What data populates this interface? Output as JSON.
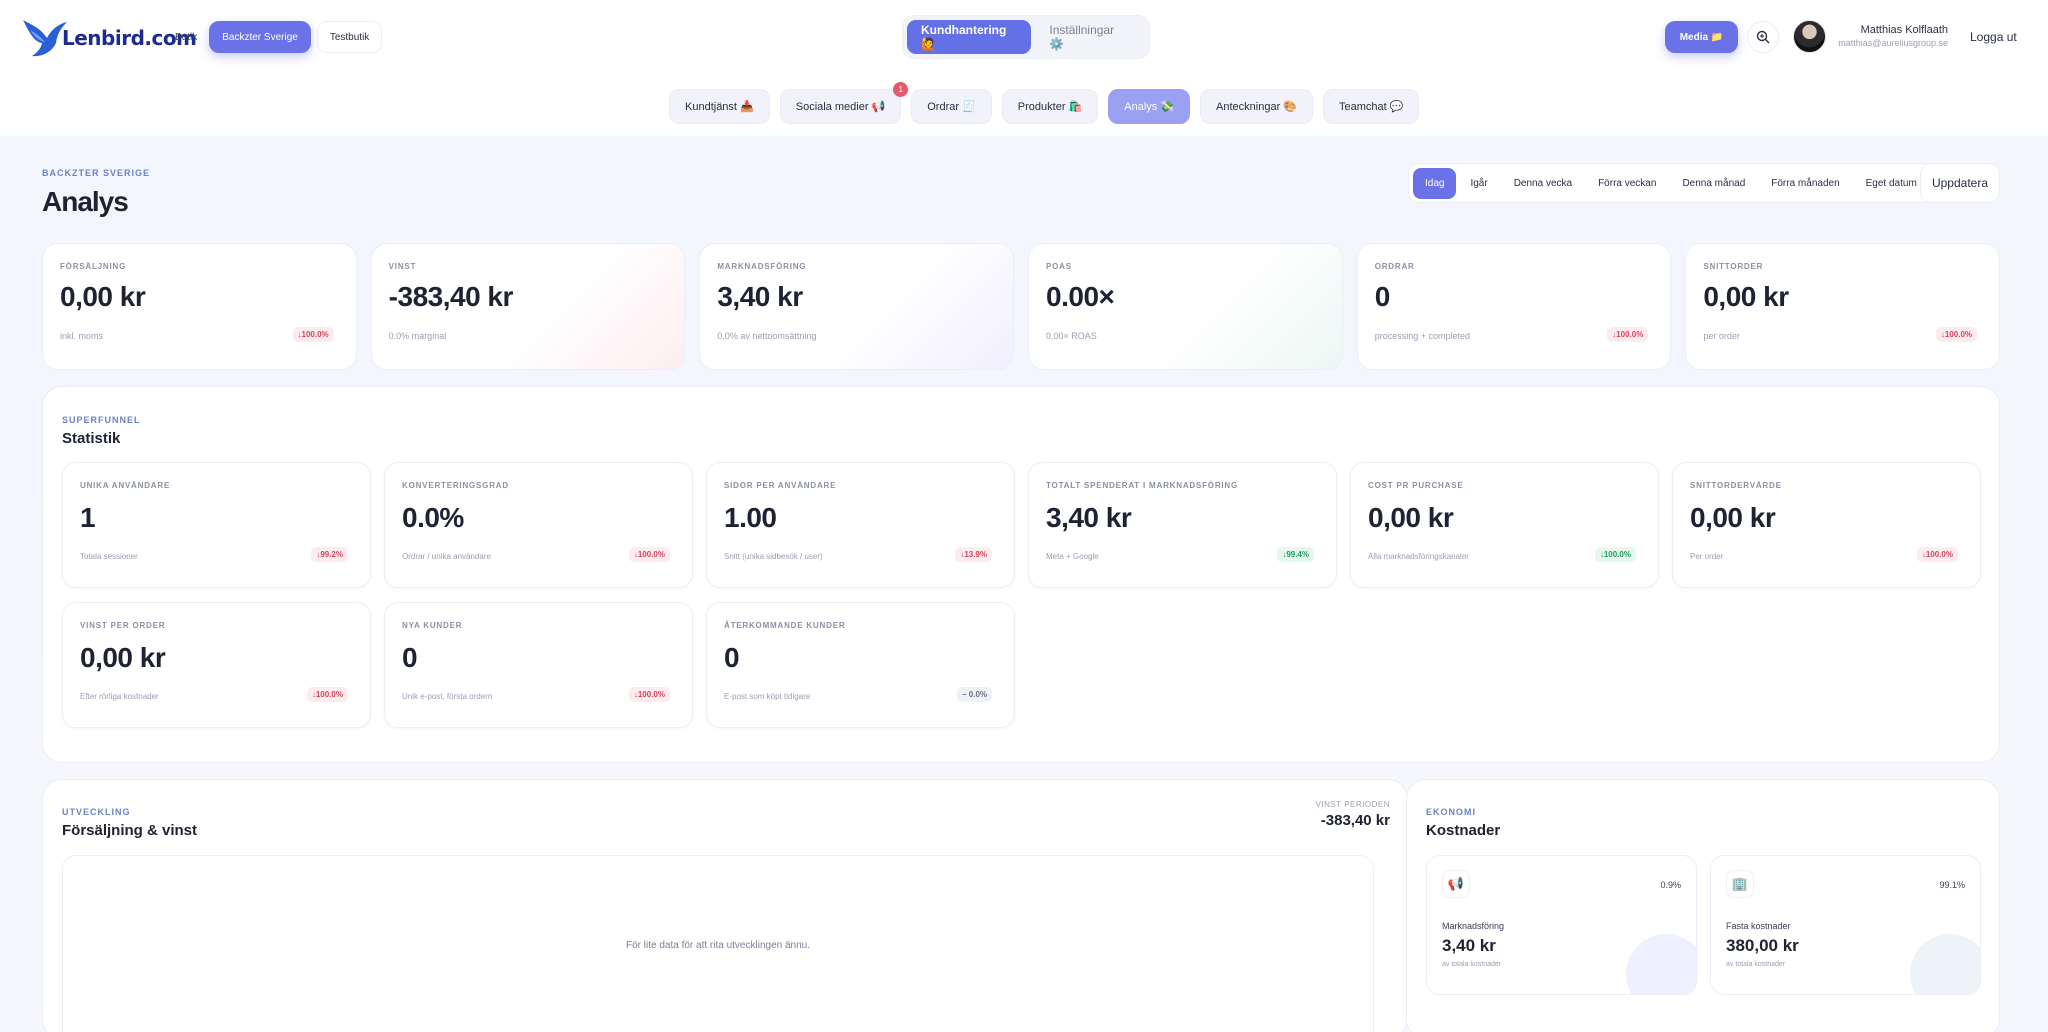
{
  "header": {
    "logo_text": "Lenbird.com",
    "store_label": "Butik",
    "stores": [
      "Backzter Sverige",
      "Testbutik"
    ],
    "main_toggle": [
      "Kundhantering 🙋",
      "Inställningar ⚙️"
    ],
    "media_label": "Media 📁",
    "user_name": "Matthias Kolflaath",
    "user_email": "matthias@aureliusgroup.se",
    "logout_label": "Logga ut"
  },
  "navtabs": [
    {
      "label": "Kundtjänst 📥"
    },
    {
      "label": "Sociala medier 📢",
      "badge": "1"
    },
    {
      "label": "Ordrar 🧾"
    },
    {
      "label": "Produkter 🛍️"
    },
    {
      "label": "Analys 💸"
    },
    {
      "label": "Anteckningar 🎨"
    },
    {
      "label": "Teamchat 💬"
    }
  ],
  "page": {
    "eyebrow": "BACKZTER SVERIGE",
    "title": "Analys",
    "ranges": [
      "Idag",
      "Igår",
      "Denna vecka",
      "Förra veckan",
      "Denna månad",
      "Förra månaden",
      "Eget datum"
    ],
    "refresh_label": "Uppdatera"
  },
  "kpis": [
    {
      "label": "FÖRSÄLJNING",
      "value": "0,00 kr",
      "sub": "inkl. moms",
      "delta": "↓100.0%"
    },
    {
      "label": "VINST",
      "value": "-383,40 kr",
      "sub": "0.0% marginal",
      "delta": ""
    },
    {
      "label": "MARKNADSFÖRING",
      "value": "3,40 kr",
      "sub": "0.0% av nettoomsättning",
      "delta": ""
    },
    {
      "label": "POAS",
      "value": "0.00×",
      "sub": "0.00× ROAS",
      "delta": ""
    },
    {
      "label": "ORDRAR",
      "value": "0",
      "sub": "processing + completed",
      "delta": "↓100.0%"
    },
    {
      "label": "SNITTORDER",
      "value": "0,00 kr",
      "sub": "per order",
      "delta": "↓100.0%"
    }
  ],
  "stats": {
    "eyebrow": "SUPERFUNNEL",
    "title": "Statistik",
    "items": [
      {
        "label": "UNIKA ANVÄNDARE",
        "value": "1",
        "sub": "Totala sessioner",
        "delta": "↓99.2%",
        "tone": "neg"
      },
      {
        "label": "KONVERTERINGSGRAD",
        "value": "0.0%",
        "sub": "Ordrar / unika användare",
        "delta": "↓100.0%",
        "tone": "neg"
      },
      {
        "label": "SIDOR PER ANVÄNDARE",
        "value": "1.00",
        "sub": "Snitt (unika sidbesök / user)",
        "delta": "↓13.9%",
        "tone": "neg"
      },
      {
        "label": "TOTALT SPENDERAT I MARKNADSFÖRING",
        "value": "3,40 kr",
        "sub": "Meta + Google",
        "delta": "↓99.4%",
        "tone": "pos"
      },
      {
        "label": "COST PR PURCHASE",
        "value": "0,00 kr",
        "sub": "Alla marknadsföringskanaler",
        "delta": "↓100.0%",
        "tone": "pos"
      },
      {
        "label": "SNITTORDERVÄRDE",
        "value": "0,00 kr",
        "sub": "Per order",
        "delta": "↓100.0%",
        "tone": "neg"
      },
      {
        "label": "VINST PER ORDER",
        "value": "0,00 kr",
        "sub": "Efter rörliga kostnader",
        "delta": "↓100.0%",
        "tone": "neg"
      },
      {
        "label": "NYA KUNDER",
        "value": "0",
        "sub": "Unik e-post, första ordern",
        "delta": "↓100.0%",
        "tone": "neg"
      },
      {
        "label": "ÅTERKOMMANDE KUNDER",
        "value": "0",
        "sub": "E-post som köpt tidigare",
        "delta": "– 0.0%",
        "tone": "neu"
      }
    ]
  },
  "development": {
    "eyebrow": "UTVECKLING",
    "title": "Försäljning & vinst",
    "profit_label": "VINST PERIODEN",
    "profit_value": "-383,40 kr",
    "empty_text": "För lite data för att rita utvecklingen ännu."
  },
  "costs": {
    "eyebrow": "EKONOMI",
    "title": "Kostnader",
    "items": [
      {
        "icon": "📢",
        "pct": "0.9%",
        "name": "Marknadsföring",
        "value": "3,40 kr",
        "sub": "av totala kostnader"
      },
      {
        "icon": "🏢",
        "pct": "99.1%",
        "name": "Fasta kostnader",
        "value": "380,00 kr",
        "sub": "av totala kostnader"
      }
    ]
  },
  "colors": {
    "accent": "#6b72e8",
    "negative": "#d8425a",
    "positive": "#1f9d5b"
  }
}
